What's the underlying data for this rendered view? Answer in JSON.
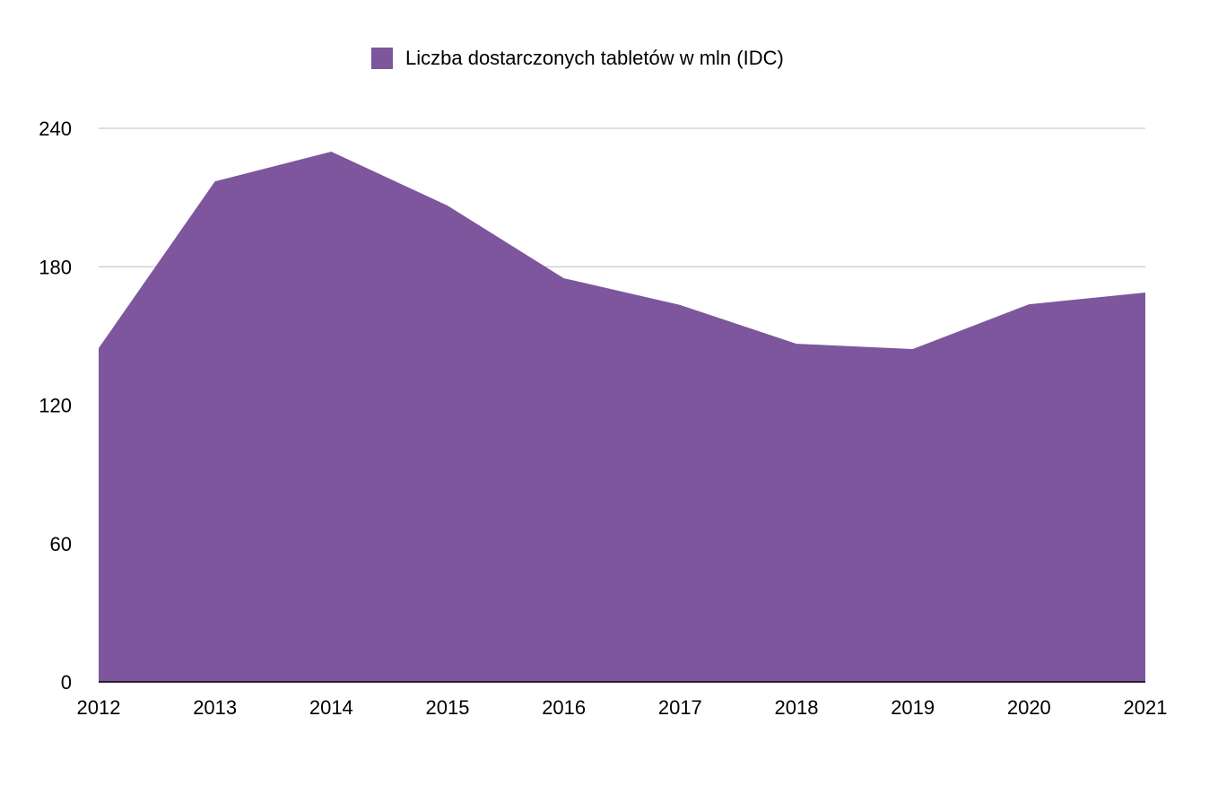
{
  "chart_data": {
    "type": "area",
    "title": "",
    "xlabel": "",
    "ylabel": "",
    "categories": [
      "2012",
      "2013",
      "2014",
      "2015",
      "2016",
      "2017",
      "2018",
      "2019",
      "2020",
      "2021"
    ],
    "series": [
      {
        "name": "Liczba dostarczonych tabletów w mln (IDC)",
        "values": [
          144.7,
          217,
          229.9,
          206.5,
          175,
          163.4,
          146.6,
          144.3,
          163.7,
          168.8
        ]
      }
    ],
    "ylim": [
      0,
      240
    ],
    "yticks": [
      "0",
      "60",
      "120",
      "180",
      "240"
    ],
    "grid": true,
    "legend_position": "top",
    "color": "#7d569e"
  }
}
